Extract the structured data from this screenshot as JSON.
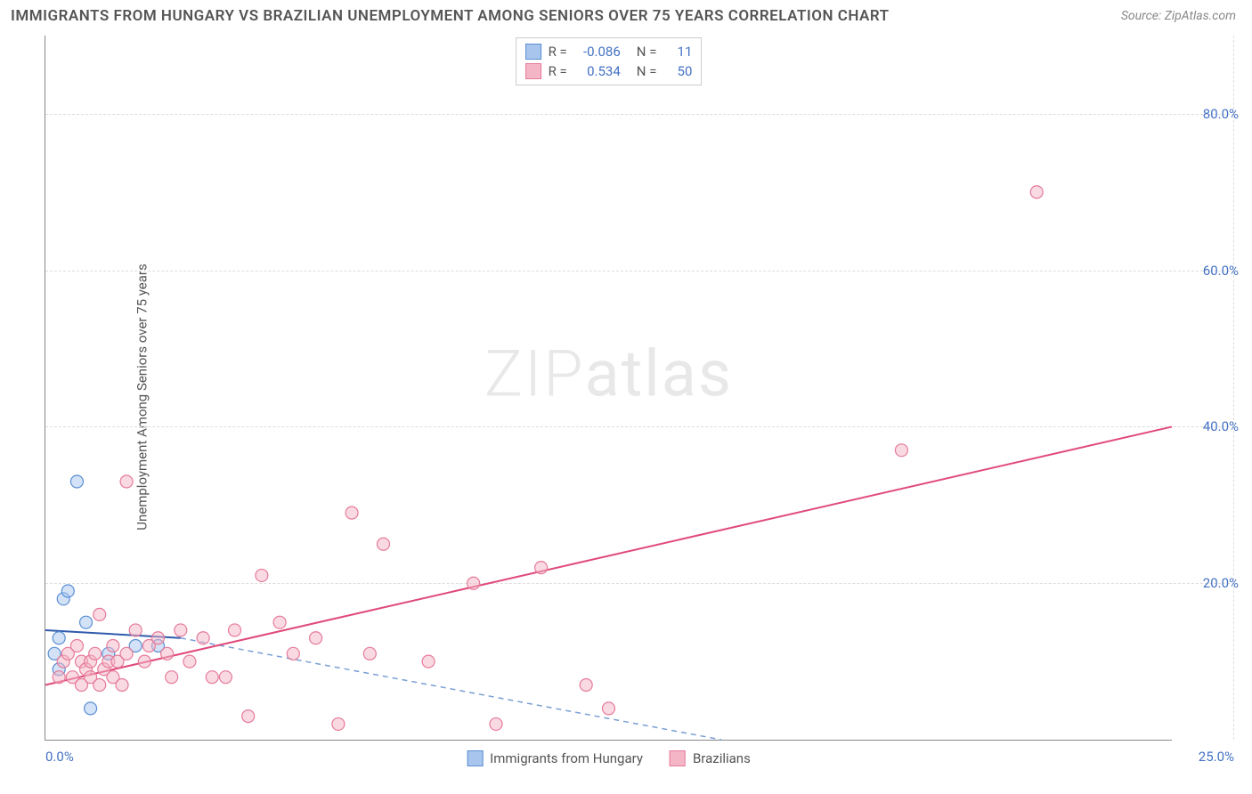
{
  "title": "IMMIGRANTS FROM HUNGARY VS BRAZILIAN UNEMPLOYMENT AMONG SENIORS OVER 75 YEARS CORRELATION CHART",
  "source": "Source: ZipAtlas.com",
  "y_axis_label": "Unemployment Among Seniors over 75 years",
  "watermark_prefix": "ZIP",
  "watermark_suffix": "atlas",
  "chart": {
    "type": "scatter",
    "xlim": [
      0,
      25
    ],
    "ylim": [
      0,
      90
    ],
    "xtick_min": "0.0%",
    "xtick_max": "25.0%",
    "yticks": [
      {
        "value": 20,
        "label": "20.0%"
      },
      {
        "value": 40,
        "label": "40.0%"
      },
      {
        "value": 60,
        "label": "60.0%"
      },
      {
        "value": 80,
        "label": "80.0%"
      }
    ],
    "grid_color": "#dddddd",
    "background_color": "#ffffff",
    "series": [
      {
        "name": "Immigrants from Hungary",
        "fill_color": "#a8c5ed",
        "stroke_color": "#5a8fd4",
        "fill_opacity": 0.5,
        "marker_radius": 7,
        "R": "-0.086",
        "N": "11",
        "trend": {
          "x1": 0,
          "y1": 14,
          "x2": 3,
          "y2": 13,
          "dashed": false,
          "color": "#2e5aac",
          "width": 2
        },
        "trend_ext": {
          "x1": 3,
          "y1": 13,
          "x2": 15,
          "y2": 0,
          "dashed": true,
          "color": "#7a9fd4",
          "width": 1.5
        },
        "points": [
          {
            "x": 0.2,
            "y": 11
          },
          {
            "x": 0.3,
            "y": 13
          },
          {
            "x": 0.3,
            "y": 9
          },
          {
            "x": 0.4,
            "y": 18
          },
          {
            "x": 0.5,
            "y": 19
          },
          {
            "x": 0.7,
            "y": 33
          },
          {
            "x": 0.9,
            "y": 15
          },
          {
            "x": 1.0,
            "y": 4
          },
          {
            "x": 1.4,
            "y": 11
          },
          {
            "x": 2.0,
            "y": 12
          },
          {
            "x": 2.5,
            "y": 12
          }
        ]
      },
      {
        "name": "Brazilians",
        "fill_color": "#f4b6c6",
        "stroke_color": "#e67a9a",
        "fill_opacity": 0.5,
        "marker_radius": 7,
        "R": "0.534",
        "N": "50",
        "trend": {
          "x1": 0,
          "y1": 7,
          "x2": 25,
          "y2": 40,
          "dashed": false,
          "color": "#e04a7a",
          "width": 2
        },
        "points": [
          {
            "x": 0.3,
            "y": 8
          },
          {
            "x": 0.4,
            "y": 10
          },
          {
            "x": 0.5,
            "y": 11
          },
          {
            "x": 0.6,
            "y": 8
          },
          {
            "x": 0.7,
            "y": 12
          },
          {
            "x": 0.8,
            "y": 7
          },
          {
            "x": 0.8,
            "y": 10
          },
          {
            "x": 0.9,
            "y": 9
          },
          {
            "x": 1.0,
            "y": 10
          },
          {
            "x": 1.0,
            "y": 8
          },
          {
            "x": 1.1,
            "y": 11
          },
          {
            "x": 1.2,
            "y": 16
          },
          {
            "x": 1.2,
            "y": 7
          },
          {
            "x": 1.3,
            "y": 9
          },
          {
            "x": 1.4,
            "y": 10
          },
          {
            "x": 1.5,
            "y": 12
          },
          {
            "x": 1.5,
            "y": 8
          },
          {
            "x": 1.6,
            "y": 10
          },
          {
            "x": 1.7,
            "y": 7
          },
          {
            "x": 1.8,
            "y": 11
          },
          {
            "x": 1.8,
            "y": 33
          },
          {
            "x": 2.0,
            "y": 14
          },
          {
            "x": 2.2,
            "y": 10
          },
          {
            "x": 2.3,
            "y": 12
          },
          {
            "x": 2.5,
            "y": 13
          },
          {
            "x": 2.7,
            "y": 11
          },
          {
            "x": 2.8,
            "y": 8
          },
          {
            "x": 3.0,
            "y": 14
          },
          {
            "x": 3.2,
            "y": 10
          },
          {
            "x": 3.5,
            "y": 13
          },
          {
            "x": 3.7,
            "y": 8
          },
          {
            "x": 4.0,
            "y": 8
          },
          {
            "x": 4.2,
            "y": 14
          },
          {
            "x": 4.5,
            "y": 3
          },
          {
            "x": 4.8,
            "y": 21
          },
          {
            "x": 5.2,
            "y": 15
          },
          {
            "x": 5.5,
            "y": 11
          },
          {
            "x": 6.0,
            "y": 13
          },
          {
            "x": 6.5,
            "y": 2
          },
          {
            "x": 6.8,
            "y": 29
          },
          {
            "x": 7.2,
            "y": 11
          },
          {
            "x": 7.5,
            "y": 25
          },
          {
            "x": 8.5,
            "y": 10
          },
          {
            "x": 9.5,
            "y": 20
          },
          {
            "x": 10.0,
            "y": 2
          },
          {
            "x": 11.0,
            "y": 22
          },
          {
            "x": 12.0,
            "y": 7
          },
          {
            "x": 12.5,
            "y": 4
          },
          {
            "x": 19.0,
            "y": 37
          },
          {
            "x": 22.0,
            "y": 70
          }
        ]
      }
    ]
  },
  "legend_bottom": [
    {
      "label": "Immigrants from Hungary",
      "fill": "#a8c5ed",
      "stroke": "#5a8fd4"
    },
    {
      "label": "Brazilians",
      "fill": "#f4b6c6",
      "stroke": "#e67a9a"
    }
  ]
}
